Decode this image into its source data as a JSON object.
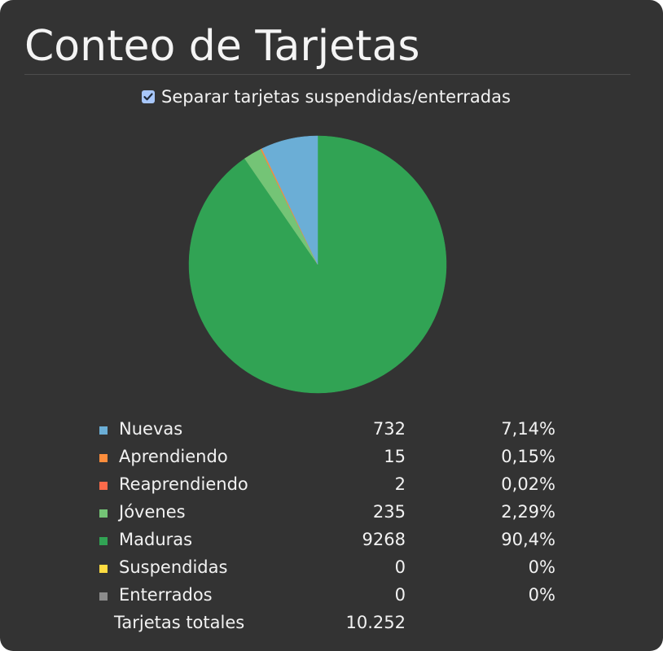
{
  "page": {
    "title": "Conteo de Tarjetas",
    "separate_option": {
      "label": "Separar tarjetas suspendidas/enterradas",
      "checked": true
    }
  },
  "colors": {
    "background": "#333333",
    "nuevas": "#6baed6",
    "aprendiendo": "#fd8d3c",
    "reaprendiendo": "#fb6a4a",
    "jovenes": "#74c476",
    "maduras": "#31a354",
    "suspendidas": "#ffdc41",
    "enterrados": "#8c8c8c"
  },
  "chart_data": {
    "type": "pie",
    "title": "",
    "categories": [
      "Nuevas",
      "Aprendiendo",
      "Reaprendiendo",
      "Jóvenes",
      "Maduras",
      "Suspendidas",
      "Enterrados"
    ],
    "values": [
      732,
      15,
      2,
      235,
      9268,
      0,
      0
    ],
    "percent_labels": [
      "7,14%",
      "0,15%",
      "0,02%",
      "2,29%",
      "90,4%",
      "0%",
      "0%"
    ],
    "count_labels": [
      "732",
      "15",
      "2",
      "235",
      "9268",
      "0",
      "0"
    ],
    "colors": [
      "#6baed6",
      "#fd8d3c",
      "#fb6a4a",
      "#74c476",
      "#31a354",
      "#ffdc41",
      "#8c8c8c"
    ],
    "total": {
      "label": "Tarjetas totales",
      "value": "10.252"
    },
    "legend_position": "bottom"
  }
}
